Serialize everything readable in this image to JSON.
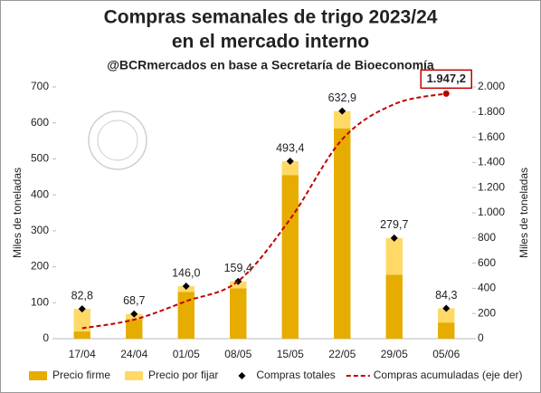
{
  "chart_data": {
    "type": "bar",
    "title": [
      "Compras semanales de trigo 2023/24",
      "en el mercado interno"
    ],
    "subtitle": "@BCRmercados en base a Secretaría de Bioeconomía",
    "y_label": "Miles de toneladas",
    "y2_label": "Miles de toneladas",
    "categories": [
      "17/04",
      "24/04",
      "01/05",
      "08/05",
      "15/05",
      "22/05",
      "29/05",
      "05/06"
    ],
    "stacked": true,
    "series": [
      {
        "name": "Precio firme",
        "kind": "bar",
        "color": "#e6ac00",
        "values": [
          20,
          55,
          130,
          140,
          455,
          585,
          178,
          45
        ]
      },
      {
        "name": "Precio por fijar",
        "kind": "bar",
        "color": "#ffd966",
        "values": [
          62.8,
          13.7,
          16,
          19.4,
          38.4,
          47.9,
          101.7,
          39.3
        ]
      },
      {
        "name": "Compras totales",
        "kind": "marker",
        "color": "#000000",
        "values": [
          82.8,
          68.7,
          146.0,
          159.4,
          493.4,
          632.9,
          279.7,
          84.3
        ],
        "value_labels": [
          "82,8",
          "68,7",
          "146,0",
          "159,4",
          "493,4",
          "632,9",
          "279,7",
          "84,3"
        ]
      },
      {
        "name": "Compras acumuladas (eje der)",
        "kind": "line",
        "axis": "y2",
        "color": "#c00000",
        "dashed": true,
        "values": [
          82.8,
          151.5,
          297.5,
          456.9,
          950.3,
          1583.2,
          1862.9,
          1947.2
        ],
        "value_labels": [
          null,
          null,
          null,
          null,
          null,
          null,
          null,
          "1.947,2"
        ]
      }
    ],
    "ylim": [
      0,
      700
    ],
    "yticks": [
      0,
      100,
      200,
      300,
      400,
      500,
      600,
      700
    ],
    "y2lim": [
      0,
      2000
    ],
    "y2ticks": [
      0,
      200,
      400,
      600,
      800,
      {
        "value": 1000,
        "label": "1.000"
      },
      {
        "value": 1200,
        "label": "1.200"
      },
      {
        "value": 1400,
        "label": "1.400"
      },
      {
        "value": 1600,
        "label": "1.600"
      },
      {
        "value": 1800,
        "label": "1.800"
      },
      {
        "value": 2000,
        "label": "2.000"
      }
    ],
    "grid": false,
    "legend": "bottom"
  }
}
